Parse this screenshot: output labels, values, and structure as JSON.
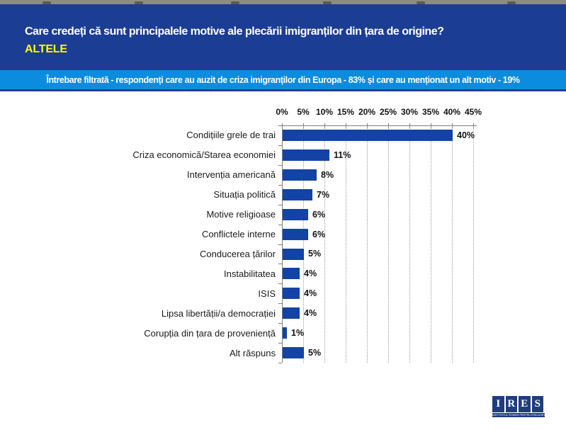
{
  "slide": {
    "header": {
      "title": "Care credeți că sunt principalele motive ale plecării imigranților din țara de origine?",
      "highlight": "ALTELE",
      "bg_color": "#1B3D94",
      "title_color": "#FFFFFF",
      "highlight_color": "#FFFF00"
    },
    "filter_note": {
      "text": "Întrebare filtrată - respondenți care au auzit de criza imigranților din Europa - 83% și care au menționat un alt motiv - 19%",
      "bg_color": "#0C8CDE",
      "text_color": "#FFFFFF"
    }
  },
  "chart_data": {
    "type": "bar",
    "orientation": "horizontal",
    "categories": [
      "Condițiile grele de trai",
      "Criza economică/Starea economiei",
      "Intervenția americană",
      "Situația politică",
      "Motive religioase",
      "Conflictele interne",
      "Conducerea țărilor",
      "Instabilitatea",
      "ISIS",
      "Lipsa libertății/a democrației",
      "Corupția din țara de proveniență",
      "Alt răspuns"
    ],
    "values": [
      40,
      11,
      8,
      7,
      6,
      6,
      5,
      4,
      4,
      4,
      1,
      5
    ],
    "unit": "%",
    "x_ticks": [
      "0%",
      "5%",
      "10%",
      "15%",
      "20%",
      "25%",
      "30%",
      "35%",
      "40%",
      "45%"
    ],
    "xlim": [
      0,
      45
    ],
    "grid": "vertical-dotted",
    "axis_position": "top",
    "legend": "none",
    "bar_color": "#1243A5"
  },
  "logo": {
    "letters": [
      "I",
      "R",
      "E",
      "S"
    ],
    "tagline": "INSTITUTUL ROMÂN PENTRU EVALUARE ȘI STRATEGIE",
    "square_color": "#1F3D7E"
  }
}
